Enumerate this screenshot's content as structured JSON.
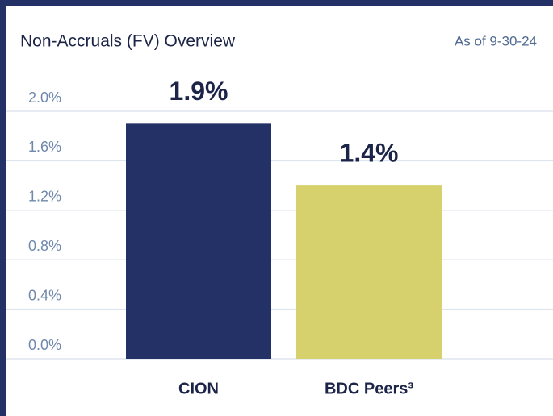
{
  "chart_data": {
    "type": "bar",
    "title": "Non-Accruals (FV) Overview",
    "subtitle": "As of 9-30-24",
    "categories": [
      "CION",
      "BDC Peers³"
    ],
    "values": [
      1.9,
      1.4
    ],
    "value_labels": [
      "1.9%",
      "1.4%"
    ],
    "colors": [
      "#233166",
      "#d6d16c"
    ],
    "ylim": [
      0,
      2.0
    ],
    "yticks": [
      {
        "value": 0,
        "label": "0.0%"
      },
      {
        "value": 0.4,
        "label": "0.4%"
      },
      {
        "value": 0.8,
        "label": "0.8%"
      },
      {
        "value": 1.2,
        "label": "1.2%"
      },
      {
        "value": 1.6,
        "label": "1.6%"
      },
      {
        "value": 2.0,
        "label": "2.0%"
      }
    ],
    "grid": true
  }
}
